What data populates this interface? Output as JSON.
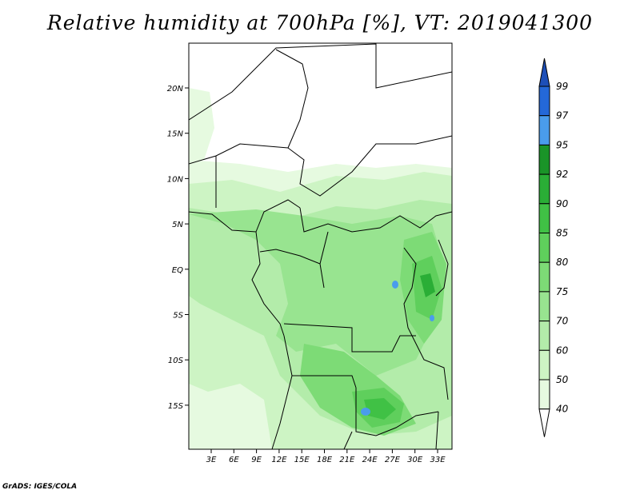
{
  "title": "Relative humidity at 700hPa [%], VT: 2019041300",
  "credit": "GrADS: IGES/COLA",
  "map": {
    "lat_labels": [
      "20N",
      "15N",
      "10N",
      "5N",
      "EQ",
      "5S",
      "10S",
      "15S"
    ],
    "lon_labels": [
      "3E",
      "6E",
      "9E",
      "12E",
      "15E",
      "18E",
      "21E",
      "24E",
      "27E",
      "30E",
      "33E"
    ]
  },
  "colorbar": {
    "levels": [
      "40",
      "50",
      "60",
      "70",
      "75",
      "80",
      "85",
      "90",
      "92",
      "95",
      "97",
      "99"
    ],
    "colors": [
      "#ffffff",
      "#e6fae0",
      "#cdf4c4",
      "#b3ecaa",
      "#98e490",
      "#7ddb76",
      "#5fcf5c",
      "#40c145",
      "#2aae36",
      "#1a9428",
      "#4a9cec",
      "#2468d8",
      "#1d4fb8"
    ]
  }
}
